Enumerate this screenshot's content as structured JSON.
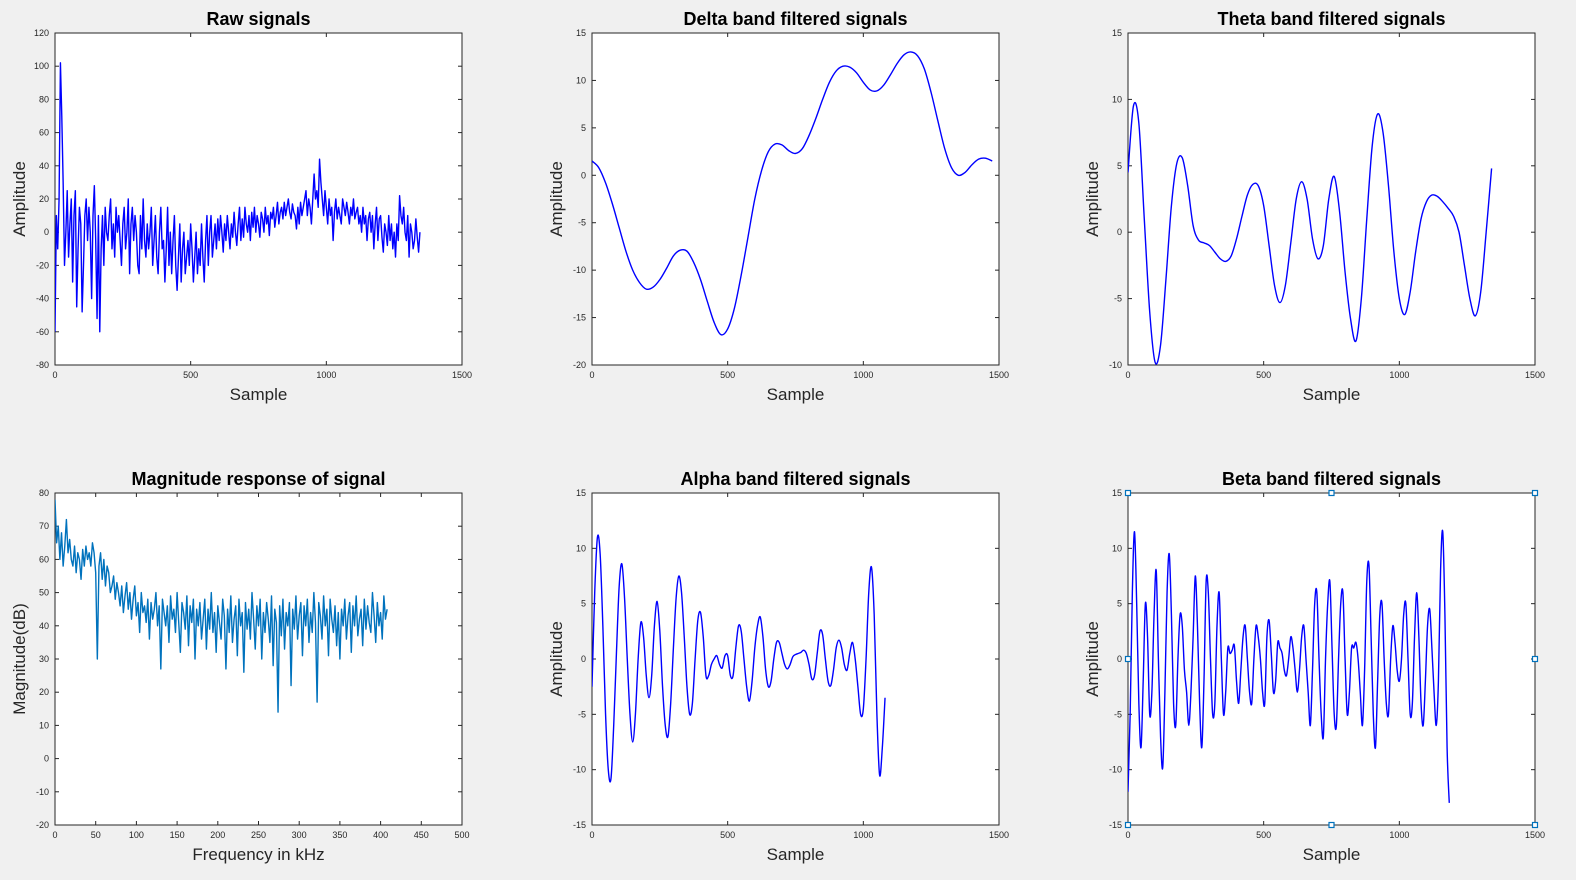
{
  "figure": {
    "background": "#f0f0f0"
  },
  "chart_data": [
    {
      "id": "raw",
      "type": "line",
      "title": "Raw signals",
      "xlabel": "Sample",
      "ylabel": "Amplitude",
      "xlim": [
        0,
        1500
      ],
      "ylim": [
        -80,
        120
      ],
      "xticks": [
        0,
        500,
        1000,
        1500
      ],
      "yticks": [
        -80,
        -60,
        -40,
        -20,
        0,
        20,
        40,
        60,
        80,
        100,
        120
      ],
      "grid": false,
      "color": "#0000ff",
      "x_step": 5,
      "series": [
        {
          "values": [
            -60,
            10,
            -10,
            20,
            102,
            70,
            30,
            -20,
            0,
            25,
            -15,
            5,
            20,
            -30,
            10,
            25,
            -45,
            -10,
            15,
            5,
            -48,
            -20,
            10,
            20,
            -5,
            15,
            0,
            -40,
            10,
            28,
            -5,
            -52,
            10,
            -60,
            -10,
            10,
            -20,
            15,
            0,
            -5,
            10,
            20,
            -10,
            5,
            -15,
            15,
            0,
            10,
            -5,
            -20,
            5,
            15,
            -10,
            0,
            20,
            -25,
            5,
            15,
            -5,
            10,
            0,
            -20,
            -25,
            10,
            -10,
            20,
            -5,
            -15,
            5,
            -10,
            0,
            15,
            -20,
            -5,
            10,
            -15,
            -25,
            0,
            15,
            -10,
            -5,
            -30,
            -10,
            15,
            -20,
            0,
            -25,
            -5,
            10,
            -20,
            -35,
            -15,
            5,
            -30,
            -10,
            0,
            -25,
            -15,
            -5,
            -20,
            5,
            -10,
            -30,
            -15,
            0,
            -25,
            -10,
            -20,
            5,
            -15,
            -30,
            -5,
            10,
            -20,
            0,
            10,
            -15,
            -5,
            5,
            -10,
            8,
            -5,
            10,
            0,
            -12,
            5,
            -5,
            10,
            0,
            -10,
            5,
            -3,
            12,
            0,
            -8,
            5,
            15,
            -5,
            8,
            -3,
            15,
            5,
            0,
            10,
            -5,
            12,
            3,
            15,
            0,
            10,
            5,
            -3,
            12,
            8,
            0,
            15,
            5,
            10,
            -2,
            12,
            8,
            15,
            3,
            10,
            18,
            5,
            12,
            15,
            8,
            18,
            10,
            15,
            20,
            12,
            8,
            17,
            12,
            10,
            2,
            15,
            5,
            18,
            10,
            15,
            20,
            25,
            10,
            20,
            15,
            5,
            20,
            35,
            20,
            25,
            15,
            44,
            30,
            20,
            10,
            25,
            15,
            5,
            20,
            10,
            15,
            -5,
            12,
            20,
            8,
            15,
            10,
            5,
            20,
            15,
            10,
            18,
            12,
            5,
            15,
            10,
            20,
            8,
            12,
            15,
            5,
            10,
            0,
            15,
            5,
            10,
            -5,
            8,
            12,
            0,
            10,
            -10,
            5,
            15,
            -5,
            8,
            10,
            -3,
            -12,
            5,
            0,
            -8,
            10,
            -5,
            5,
            -10,
            0,
            -15,
            5,
            -5,
            22,
            10,
            5,
            15,
            0,
            -5,
            10,
            -15,
            5,
            0,
            -10,
            -5,
            8,
            -3,
            -12,
            0
          ]
        }
      ]
    },
    {
      "id": "delta",
      "type": "line",
      "title": "Delta band filtered signals",
      "xlabel": "Sample",
      "ylabel": "Amplitude",
      "xlim": [
        0,
        1500
      ],
      "ylim": [
        -20,
        15
      ],
      "xticks": [
        0,
        500,
        1000,
        1500
      ],
      "yticks": [
        -20,
        -15,
        -10,
        -5,
        0,
        5,
        10,
        15
      ],
      "grid": false,
      "color": "#0000ff",
      "x_step": 25,
      "series": [
        {
          "values": [
            1.5,
            0.8,
            -0.8,
            -3,
            -5.5,
            -8,
            -10,
            -11.3,
            -12,
            -11.8,
            -11,
            -9.8,
            -8.5,
            -7.9,
            -8,
            -9.2,
            -11,
            -13.3,
            -15.5,
            -16.8,
            -16.2,
            -14,
            -10.5,
            -6.5,
            -2.5,
            0.5,
            2.5,
            3.3,
            3.2,
            2.6,
            2.3,
            2.8,
            4.2,
            6,
            8,
            9.8,
            11,
            11.5,
            11.4,
            10.8,
            9.8,
            9,
            8.9,
            9.5,
            10.6,
            11.8,
            12.7,
            13,
            12.6,
            11.2,
            8.7,
            5.7,
            2.8,
            0.8,
            0,
            0.3,
            1.1,
            1.7,
            1.8,
            1.5
          ]
        }
      ]
    },
    {
      "id": "theta",
      "type": "line",
      "title": "Theta band filtered signals",
      "xlabel": "Sample",
      "ylabel": "Amplitude",
      "xlim": [
        0,
        1500
      ],
      "ylim": [
        -10,
        15
      ],
      "xticks": [
        0,
        500,
        1000,
        1500
      ],
      "yticks": [
        -10,
        -5,
        0,
        5,
        10,
        15
      ],
      "grid": false,
      "color": "#0000ff",
      "x_step": 20,
      "series": [
        {
          "values": [
            4.5,
            9.5,
            8.2,
            1,
            -6,
            -9.8,
            -8.5,
            -3.5,
            2,
            5.2,
            5.6,
            3.5,
            0.5,
            -0.6,
            -0.8,
            -1,
            -1.5,
            -2,
            -2.2,
            -1.8,
            -0.5,
            1.2,
            2.8,
            3.6,
            3.5,
            2,
            -1,
            -4,
            -5.3,
            -4,
            -0.8,
            2.5,
            3.8,
            2.5,
            -0.5,
            -2,
            -1,
            2.5,
            4.2,
            1.5,
            -3,
            -6.5,
            -8.2,
            -5,
            1,
            6.5,
            8.9,
            7.5,
            3.5,
            -1.5,
            -5,
            -6.2,
            -4.5,
            -1.5,
            1,
            2.3,
            2.8,
            2.7,
            2.3,
            1.8,
            1.2,
            0,
            -2.5,
            -5,
            -6.3,
            -4.5,
            0,
            4.8
          ]
        }
      ]
    },
    {
      "id": "magnitude",
      "type": "line",
      "title": "Magnitude response of signal",
      "xlabel": "Frequency in kHz",
      "ylabel": "Magnitude(dB)",
      "xlim": [
        0,
        500
      ],
      "ylim": [
        -20,
        80
      ],
      "xticks": [
        0,
        50,
        100,
        150,
        200,
        250,
        300,
        350,
        400,
        450,
        500
      ],
      "yticks": [
        -20,
        -10,
        0,
        10,
        20,
        30,
        40,
        50,
        60,
        70,
        80
      ],
      "grid": false,
      "color": "#0072bd",
      "x_step": 2,
      "series": [
        {
          "values": [
            78,
            65,
            70,
            60,
            68,
            58,
            64,
            72,
            62,
            66,
            60,
            58,
            64,
            56,
            62,
            60,
            54,
            63,
            58,
            64,
            60,
            62,
            58,
            65,
            62,
            56,
            30,
            58,
            62,
            54,
            60,
            52,
            58,
            56,
            50,
            52,
            55,
            48,
            53,
            50,
            46,
            52,
            44,
            49,
            53,
            45,
            50,
            42,
            48,
            52,
            43,
            47,
            38,
            50,
            44,
            46,
            41,
            48,
            36,
            47,
            42,
            45,
            50,
            40,
            46,
            27,
            48,
            44,
            40,
            46,
            35,
            49,
            42,
            45,
            38,
            50,
            41,
            32,
            47,
            44,
            39,
            49,
            34,
            46,
            41,
            48,
            30,
            45,
            40,
            47,
            36,
            42,
            48,
            33,
            45,
            39,
            50,
            38,
            44,
            32,
            46,
            41,
            36,
            48,
            43,
            27,
            45,
            38,
            49,
            35,
            42,
            46,
            31,
            48,
            40,
            44,
            26,
            47,
            39,
            45,
            36,
            50,
            42,
            33,
            46,
            40,
            48,
            30,
            44,
            38,
            47,
            42,
            35,
            49,
            28,
            45,
            41,
            14,
            46,
            37,
            48,
            33,
            44,
            40,
            47,
            22,
            45,
            39,
            49,
            36,
            43,
            47,
            31,
            46,
            40,
            48,
            35,
            44,
            38,
            50,
            41,
            17,
            47,
            43,
            36,
            49,
            40,
            45,
            31,
            48,
            42,
            38,
            46,
            34,
            44,
            30,
            45,
            40,
            48,
            36,
            43,
            47,
            32,
            46,
            40,
            49,
            37,
            42,
            45,
            34,
            48,
            39,
            46,
            41,
            38,
            50,
            43,
            35,
            47,
            40,
            44,
            36,
            49,
            42,
            45
          ]
        }
      ]
    },
    {
      "id": "alpha",
      "type": "line",
      "title": "Alpha band filtered signals",
      "xlabel": "Sample",
      "ylabel": "Amplitude",
      "xlim": [
        0,
        1500
      ],
      "ylim": [
        -15,
        15
      ],
      "xticks": [
        0,
        500,
        1000,
        1500
      ],
      "yticks": [
        -15,
        -10,
        -5,
        0,
        5,
        10,
        15
      ],
      "grid": false,
      "color": "#0000ff",
      "x_step": 10,
      "series": [
        {
          "values": [
            -2.5,
            6,
            11,
            9.5,
            3,
            -5,
            -10,
            -10.8,
            -6,
            0.5,
            6.5,
            8.6,
            5.5,
            0,
            -5,
            -7.5,
            -5,
            0,
            3.3,
            2,
            -1.5,
            -3.5,
            -1.5,
            3,
            5.2,
            2.5,
            -2.5,
            -6,
            -7,
            -4,
            1,
            5.5,
            7.5,
            6,
            2,
            -2.5,
            -5,
            -4,
            0,
            3.5,
            4.2,
            2,
            -1.5,
            -1.5,
            -0.5,
            0,
            0.3,
            -0.5,
            -0.8,
            0.3,
            0.3,
            -1.5,
            -1.5,
            1,
            3,
            2.5,
            0,
            -2.5,
            -3.8,
            -2,
            1,
            3,
            3.8,
            2,
            -1,
            -2.5,
            -2,
            0,
            1.5,
            1.5,
            0.5,
            -0.5,
            -0.9,
            -0.5,
            0.2,
            0.4,
            0.5,
            0.6,
            0.8,
            0.5,
            -0.5,
            -1.8,
            -1.5,
            0.5,
            2.5,
            2.2,
            0,
            -2,
            -2.4,
            -1,
            1,
            1.7,
            1,
            -0.5,
            -1,
            0.5,
            1.5,
            0,
            -2.5,
            -5,
            -4.5,
            0,
            6,
            8.3,
            4,
            -5,
            -10.5,
            -8,
            -3.5
          ]
        }
      ]
    },
    {
      "id": "beta",
      "type": "line",
      "title": "Beta band filtered signals",
      "xlabel": "Sample",
      "ylabel": "Amplitude",
      "xlim": [
        0,
        1500
      ],
      "ylim": [
        -15,
        15
      ],
      "xticks": [
        0,
        500,
        1000,
        1500
      ],
      "yticks": [
        -15,
        -10,
        -5,
        0,
        5,
        10,
        15
      ],
      "grid": false,
      "color": "#0000ff",
      "x_step": 8,
      "series": [
        {
          "values": [
            -12,
            -5,
            6,
            11.5,
            5,
            -4,
            -8,
            -2,
            5,
            2,
            -5,
            -3,
            4,
            8,
            0,
            -7,
            -9.8,
            -3,
            6,
            9.5,
            4,
            -4,
            -6,
            0,
            4,
            3,
            -1,
            -3,
            -6,
            -3,
            2,
            7.5,
            3,
            -4,
            -8,
            -2,
            7,
            6,
            0,
            -5,
            -4,
            3,
            6,
            0,
            -5,
            -3,
            1,
            0.5,
            0.8,
            1.2,
            -2,
            -4,
            -1,
            2,
            3,
            0,
            -3,
            -4,
            0,
            3,
            2,
            0,
            -3,
            -4,
            2,
            3.5,
            0.5,
            -3,
            -2,
            1.5,
            1,
            0.5,
            -1,
            -1.5,
            0,
            2,
            1,
            -1,
            -3,
            -1,
            2,
            3,
            0,
            -3,
            -6,
            -1,
            5,
            6,
            0,
            -5,
            -7,
            0,
            5,
            7,
            1,
            -5,
            -6,
            0,
            5,
            6,
            0,
            -5,
            -3,
            1,
            1,
            1.5,
            0,
            -3,
            -6,
            -1,
            7,
            8.5,
            2,
            -5,
            -8,
            -2,
            4,
            5,
            0,
            -4,
            -5,
            0,
            3,
            1.5,
            -1,
            -2,
            0,
            4,
            5,
            0,
            -5,
            -4,
            2,
            6,
            2,
            -4,
            -6,
            -2,
            3,
            4.5,
            1,
            -3,
            -6,
            -2,
            8,
            11.5,
            4,
            -8,
            -13
          ]
        }
      ]
    }
  ]
}
